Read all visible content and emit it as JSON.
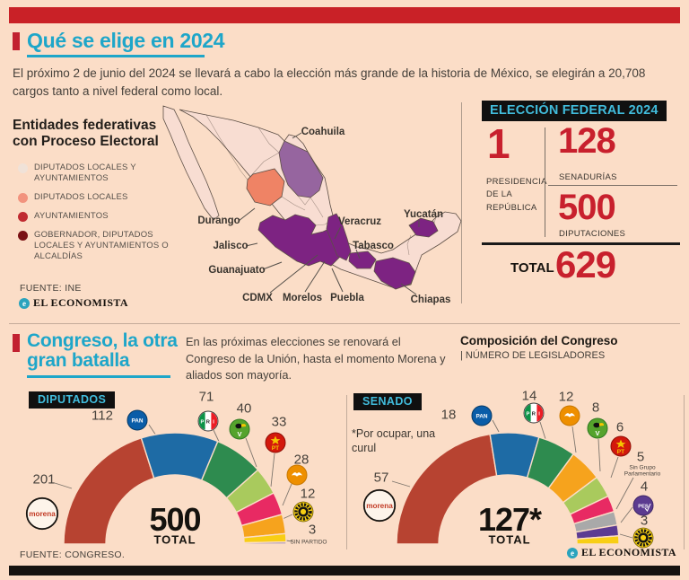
{
  "colors": {
    "background": "#fbddc7",
    "accent_red": "#c92127",
    "teal_title": "#1ea6c9",
    "box_cyan": "#41bcdc",
    "big_red": "#c8202d"
  },
  "section1": {
    "title": "Qué se elige en 2024",
    "intro": "El próximo 2 de junio del 2024 se llevará a cabo la elección más grande de la historia de México, se elegirán a 20,708 cargos tanto a nivel federal como local."
  },
  "map_section": {
    "legend_title": "Entidades federativas con Proceso Electoral",
    "legend": [
      {
        "label": "DIPUTADOS LOCALES Y AYUNTAMIENTOS",
        "color": "#f0e2d8"
      },
      {
        "label": "DIPUTADOS LOCALES",
        "color": "#f2937e"
      },
      {
        "label": "AYUNTAMIENTOS",
        "color": "#c02a30"
      },
      {
        "label": "GOBERNADOR, DIPUTADOS LOCALES Y AYUNTAMIENTOS O ALCALDÍAS",
        "color": "#7a1114"
      }
    ],
    "map_colors": {
      "default": "#f8ddd2",
      "purple": "#7d2382",
      "medium_purple": "#96659f",
      "salmon": "#ef8365",
      "outline": "#5d4f46"
    },
    "state_labels": [
      "Coahuila",
      "Durango",
      "Veracruz",
      "Yucatán",
      "Jalisco",
      "Tabasco",
      "Guanajuato",
      "CDMX",
      "Morelos",
      "Puebla",
      "Chiapas"
    ],
    "source": "FUENTE: INE",
    "brand": "EL ECONOMISTA"
  },
  "federal_box": {
    "title": "ELECCIÓN FEDERAL 2024",
    "items": [
      {
        "value": "1",
        "label": "PRESIDENCIA DE LA REPÚBLICA"
      },
      {
        "value": "128",
        "label": "SENADURÍAS"
      },
      {
        "value": "500",
        "label": "DIPUTACIONES"
      }
    ],
    "total_label": "TOTAL :",
    "total_value": "629"
  },
  "section2": {
    "title": "Congreso, la otra gran batalla",
    "intro": "En las próximas elecciones se renovará el Congreso de la Unión, hasta el momento Morena y aliados son mayoría.",
    "composition_title": "Composición del Congreso",
    "composition_subtitle": "| NÚMERO DE LEGISLADORES",
    "source": "FUENTE: CONGRESO.",
    "brand": "EL ECONOMISTA"
  },
  "chart_data": [
    {
      "type": "hemicycle",
      "title": "DIPUTADOS",
      "total": 500,
      "center_value": "500",
      "total_label": "TOTAL",
      "series": [
        {
          "name": "morena",
          "value": 201,
          "color": "#b74331",
          "logo": "morena"
        },
        {
          "name": "PAN",
          "value": 112,
          "color": "#1e6ba5",
          "logo": "pan"
        },
        {
          "name": "PRI",
          "value": 71,
          "color": "#2e8b4f",
          "logo": "pri"
        },
        {
          "name": "PVEM",
          "value": 40,
          "color": "#a9ca5d",
          "logo": "pvem"
        },
        {
          "name": "PT",
          "value": 33,
          "color": "#e82a63",
          "logo": "pt"
        },
        {
          "name": "MC",
          "value": 28,
          "color": "#f6a31d",
          "logo": "mc"
        },
        {
          "name": "PRD",
          "value": 12,
          "color": "#f8ce15",
          "logo": "prd"
        },
        {
          "name": "SIN PARTIDO",
          "value": 3,
          "color": "#8a7cb5",
          "logo": null
        }
      ]
    },
    {
      "type": "hemicycle",
      "title": "SENADO",
      "total": 127,
      "center_value": "127*",
      "total_label": "TOTAL",
      "note": "*Por ocupar, una curul",
      "series": [
        {
          "name": "morena",
          "value": 57,
          "color": "#b74331",
          "logo": "morena"
        },
        {
          "name": "PAN",
          "value": 18,
          "color": "#1e6ba5",
          "logo": "pan"
        },
        {
          "name": "PRI",
          "value": 14,
          "color": "#2e8b4f",
          "logo": "pri"
        },
        {
          "name": "MC",
          "value": 12,
          "color": "#f6a31d",
          "logo": "mc"
        },
        {
          "name": "PVEM",
          "value": 8,
          "color": "#a9ca5d",
          "logo": "pvem"
        },
        {
          "name": "PT",
          "value": 6,
          "color": "#e82a63",
          "logo": "pt"
        },
        {
          "name": "Sin Grupo Parlamentario",
          "value": 5,
          "color": "#a9a9a9",
          "logo": null
        },
        {
          "name": "PES",
          "value": 4,
          "color": "#5c3b92",
          "logo": "pes"
        },
        {
          "name": "PRD",
          "value": 3,
          "color": "#f8ce15",
          "logo": "prd"
        }
      ]
    }
  ]
}
